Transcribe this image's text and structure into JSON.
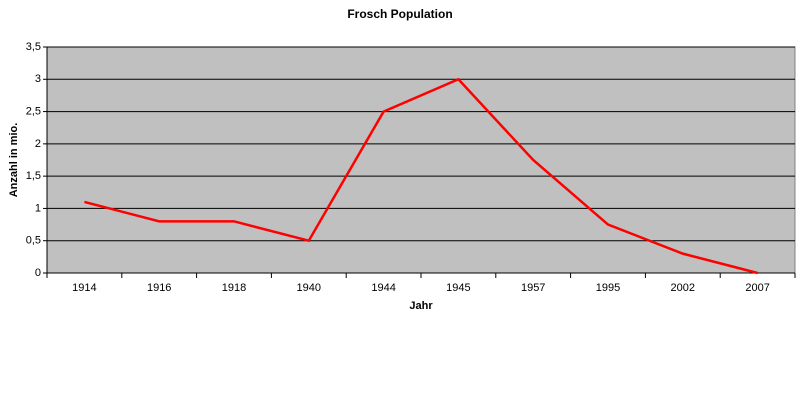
{
  "chart_data": {
    "type": "line",
    "title": "Frosch Population",
    "x_label": "Jahr",
    "y_label": "Anzahl in mio.",
    "categories": [
      "1914",
      "1916",
      "1918",
      "1940",
      "1944",
      "1945",
      "1957",
      "1995",
      "2002",
      "2007"
    ],
    "series": [
      {
        "name": "Frosch Population",
        "color": "#ff0000",
        "values": [
          1.1,
          0.8,
          0.8,
          0.5,
          2.5,
          3.0,
          1.75,
          0.75,
          0.3,
          0
        ]
      }
    ],
    "ylim": [
      0,
      3.5
    ],
    "yticks": [
      0,
      {
        "value": 0.5,
        "label": "0,5"
      },
      1,
      {
        "value": 1.5,
        "label": "1,5"
      },
      2,
      {
        "value": 2.5,
        "label": "2,5"
      },
      3,
      {
        "value": 3.5,
        "label": "3,5"
      }
    ],
    "grid": true,
    "background": "#c0c0c0"
  }
}
